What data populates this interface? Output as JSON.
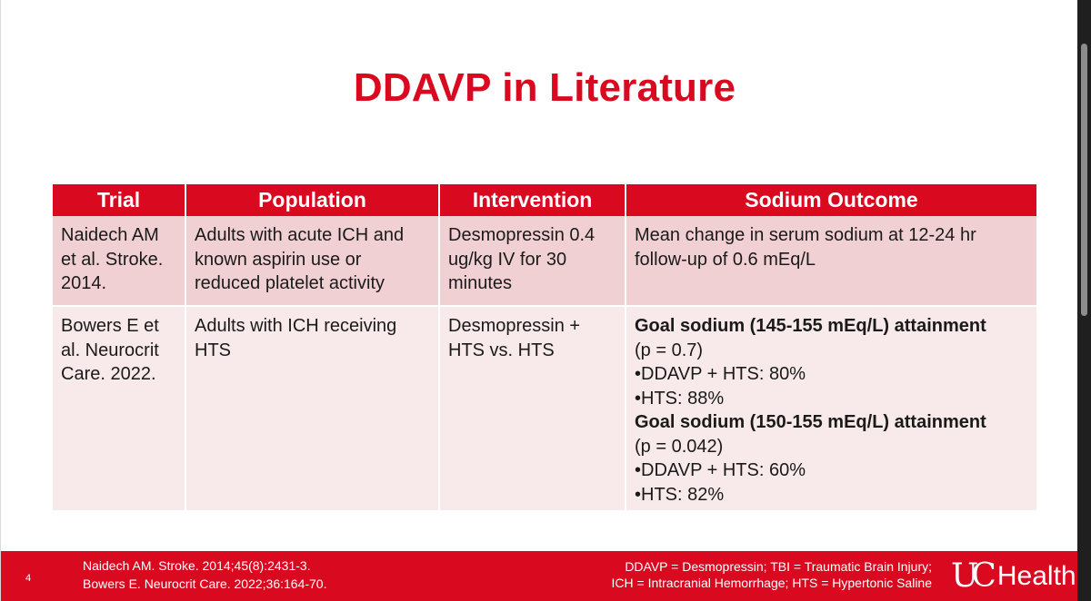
{
  "slide": {
    "title": "DDAVP in Literature",
    "page_number": "4"
  },
  "table": {
    "headers": [
      "Trial",
      "Population",
      "Intervention",
      "Sodium Outcome"
    ],
    "rows": [
      {
        "trial": [
          "Naidech AM",
          "et al. Stroke.",
          "2014."
        ],
        "population": [
          "Adults with acute ICH and",
          "known aspirin use or",
          "reduced platelet activity"
        ],
        "intervention": [
          "Desmopressin 0.4",
          "ug/kg IV for 30",
          "minutes"
        ],
        "outcome": [
          "Mean change in serum sodium at 12-24 hr",
          "follow-up of 0.6 mEq/L"
        ]
      },
      {
        "trial": [
          "Bowers E et",
          "al. Neurocrit",
          "Care. 2022."
        ],
        "population": [
          "Adults with ICH receiving",
          "HTS"
        ],
        "intervention": [
          "Desmopressin +",
          "HTS vs. HTS"
        ],
        "outcome": {
          "goal1_heading": "Goal sodium (145-155 mEq/L) attainment",
          "goal1_p": "(p = 0.7)",
          "goal1_ddavp": "•DDAVP + HTS: 80%",
          "goal1_hts": "•HTS: 88%",
          "goal2_heading": "Goal sodium (150-155 mEq/L) attainment",
          "goal2_p": "(p = 0.042)",
          "goal2_ddavp": "•DDAVP + HTS: 60%",
          "goal2_hts": "•HTS: 82%"
        }
      }
    ]
  },
  "footer": {
    "references": [
      "Naidech AM. Stroke. 2014;45(8):2431-3.",
      "Bowers E. Neurocrit Care. 2022;36:164-70."
    ],
    "abbreviations": [
      "DDAVP = Desmopressin; TBI = Traumatic Brain Injury;",
      "ICH = Intracranial Hemorrhage; HTS = Hypertonic Saline"
    ],
    "logo_mark": "UC",
    "logo_text": "Health"
  },
  "colors": {
    "accent": "#d9091f",
    "row_a": "#f1d0d4",
    "row_b": "#f8e9ea"
  }
}
